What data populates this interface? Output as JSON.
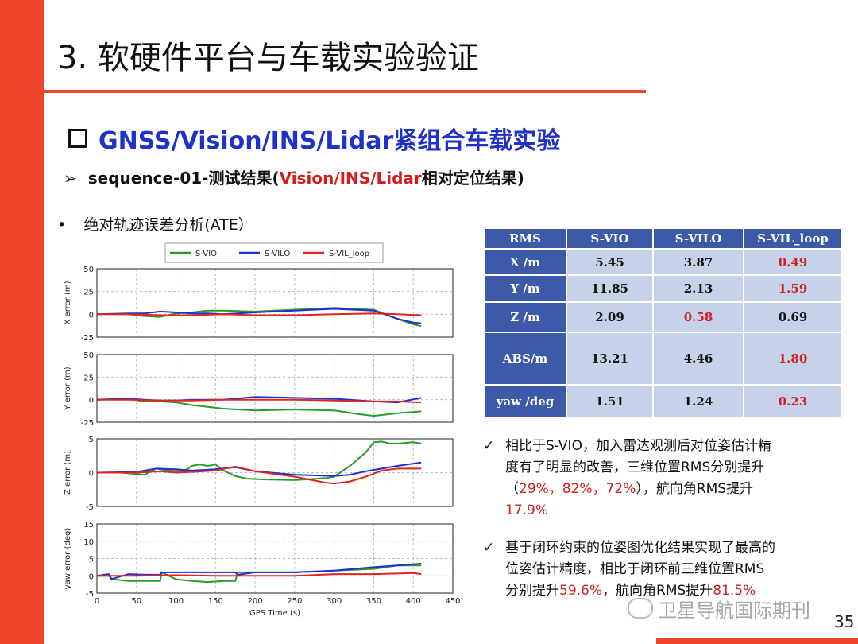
{
  "slide": {
    "title": "3. 软硬件平台与车载实验验证",
    "heading": "GNSS/Vision/INS/Lidar紧组合车载实验",
    "subheading_pre": "sequence-01-测试结果(",
    "subheading_red": "Vision/INS/Lidar",
    "subheading_post": "相对定位结果)",
    "bullet": "绝对轨迹误差分析(ATE）",
    "page_number": "35",
    "watermark": "卫星导航国际期刊",
    "accent_color": "#f0452a",
    "heading_color": "#1f31c8",
    "highlight_color": "#d21e1e"
  },
  "table": {
    "headers": [
      "RMS",
      "S-VIO",
      "S-VILO",
      "S-VIL_loop"
    ],
    "rows": [
      {
        "label": "X /m",
        "values": [
          "5.45",
          "3.87",
          "0.49"
        ],
        "red": [
          false,
          false,
          true
        ]
      },
      {
        "label": "Y /m",
        "values": [
          "11.85",
          "2.13",
          "1.59"
        ],
        "red": [
          false,
          false,
          true
        ]
      },
      {
        "label": "Z /m",
        "values": [
          "2.09",
          "0.58",
          "0.69"
        ],
        "red": [
          false,
          true,
          false
        ]
      },
      {
        "label": "ABS/m",
        "values": [
          "13.21",
          "4.46",
          "1.80"
        ],
        "red": [
          false,
          false,
          true
        ]
      },
      {
        "label": "yaw /deg",
        "values": [
          "1.51",
          "1.24",
          "0.23"
        ],
        "red": [
          false,
          false,
          true
        ]
      }
    ]
  },
  "notes": {
    "note1": {
      "t1": "相比于S-VIO，加入雷达观测后对位姿估计精",
      "t2": "度有了明显的改善，三维位置RMS分别提升",
      "t3": "（",
      "t3_red": "29%，82%，72%",
      "t3b": "），航向角RMS提升",
      "t4_red": "17.9%"
    },
    "note2": {
      "t1": "基于闭环约束的位姿图优化结果实现了最高的",
      "t2": "位姿估计精度，相比于闭环前三维位置RMS",
      "t3": "分别提升",
      "t3_red": "59.6%",
      "t3b": "，航向角RMS提升",
      "t3_red2": "81.5%"
    }
  },
  "chart_data": {
    "type": "line",
    "xlabel": "GPS Time (s)",
    "xlim": [
      0,
      450
    ],
    "xticks": [
      0,
      50,
      100,
      150,
      200,
      250,
      300,
      350,
      400,
      450
    ],
    "legend": [
      "S-VIO",
      "S-VILO",
      "S-VIL_loop"
    ],
    "colors": {
      "S-VIO": "#2a9a2a",
      "S-VILO": "#1f2fd8",
      "S-VIL_loop": "#e0251c"
    },
    "panels": [
      {
        "ylabel": "X error (m)",
        "ylim": [
          -25,
          50
        ],
        "yticks": [
          -25,
          0,
          25,
          50
        ],
        "series": [
          {
            "name": "S-VIO",
            "x": [
              0,
              40,
              60,
              80,
              100,
              120,
              140,
              160,
              200,
              250,
              300,
              350,
              380,
              400,
              410
            ],
            "y": [
              0,
              0,
              -2,
              -3,
              1,
              2,
              4,
              4,
              3,
              5,
              7,
              5,
              -5,
              -11,
              -13
            ]
          },
          {
            "name": "S-VILO",
            "x": [
              0,
              40,
              60,
              80,
              100,
              120,
              140,
              160,
              200,
              250,
              300,
              350,
              380,
              400,
              410
            ],
            "y": [
              0,
              1,
              1,
              3,
              2,
              1,
              1,
              0,
              2,
              4,
              6,
              4,
              -5,
              -9,
              -10
            ]
          },
          {
            "name": "S-VIL_loop",
            "x": [
              0,
              40,
              80,
              120,
              160,
              200,
              250,
              300,
              350,
              380,
              410
            ],
            "y": [
              0,
              0,
              -1,
              -1,
              0,
              -1,
              -1,
              0,
              1,
              0,
              -1
            ]
          }
        ]
      },
      {
        "ylabel": "Y error (m)",
        "ylim": [
          -25,
          50
        ],
        "yticks": [
          -25,
          0,
          25,
          50
        ],
        "series": [
          {
            "name": "S-VIO",
            "x": [
              0,
              40,
              60,
              80,
              100,
              120,
              140,
              160,
              200,
              250,
              300,
              330,
              350,
              380,
              410
            ],
            "y": [
              0,
              1,
              -2,
              -2,
              -3,
              -6,
              -8,
              -10,
              -12,
              -11,
              -12,
              -16,
              -18,
              -15,
              -13
            ]
          },
          {
            "name": "S-VILO",
            "x": [
              0,
              40,
              60,
              80,
              100,
              120,
              160,
              200,
              250,
              300,
              350,
              380,
              410
            ],
            "y": [
              0,
              1,
              0,
              -1,
              -1,
              0,
              0,
              3,
              2,
              1,
              -2,
              -3,
              2
            ]
          },
          {
            "name": "S-VIL_loop",
            "x": [
              0,
              40,
              80,
              120,
              160,
              200,
              250,
              300,
              350,
              380,
              410
            ],
            "y": [
              0,
              0,
              -1,
              -1,
              0,
              0,
              0,
              -1,
              -2,
              -2,
              -3
            ]
          }
        ]
      },
      {
        "ylabel": "Z error (m)",
        "ylim": [
          -5,
          5
        ],
        "yticks": [
          -5,
          0,
          5
        ],
        "series": [
          {
            "name": "S-VIO",
            "x": [
              0,
              30,
              50,
              60,
              75,
              90,
              110,
              120,
              130,
              140,
              150,
              160,
              175,
              190,
              210,
              250,
              290,
              300,
              320,
              340,
              350,
              360,
              370,
              380,
              400,
              410
            ],
            "y": [
              0,
              0,
              -0.2,
              -0.3,
              0.6,
              0.3,
              0.2,
              1.0,
              1.2,
              1.0,
              1.2,
              0.3,
              -0.5,
              -0.9,
              -1.0,
              -1.1,
              -0.8,
              -0.6,
              1.0,
              3.0,
              4.5,
              4.6,
              4.3,
              4.3,
              4.5,
              4.3
            ]
          },
          {
            "name": "S-VILO",
            "x": [
              0,
              50,
              75,
              100,
              120,
              150,
              175,
              200,
              250,
              300,
              320,
              340,
              360,
              380,
              410
            ],
            "y": [
              0,
              0.1,
              0.6,
              0.5,
              0.3,
              0.5,
              0.8,
              0.2,
              -0.3,
              -0.5,
              -0.3,
              0.2,
              0.6,
              1.0,
              1.5
            ]
          },
          {
            "name": "S-VIL_loop",
            "x": [
              0,
              50,
              80,
              100,
              120,
              150,
              175,
              200,
              250,
              290,
              300,
              320,
              340,
              360,
              380,
              410
            ],
            "y": [
              0,
              0,
              0.2,
              0,
              0.1,
              0.3,
              0.9,
              0.2,
              -0.6,
              -1.5,
              -1.6,
              -1.3,
              -0.6,
              0.3,
              0.6,
              0.6
            ]
          }
        ]
      },
      {
        "ylabel": "yaw error (deg)",
        "ylim": [
          -5,
          15
        ],
        "yticks": [
          -5,
          0,
          5,
          10,
          15
        ],
        "series": [
          {
            "name": "S-VIO",
            "x": [
              0,
              15,
              20,
              40,
              60,
              80,
              82,
              100,
              120,
              140,
              160,
              175,
              178,
              200,
              250,
              300,
              350,
              380,
              410
            ],
            "y": [
              0,
              0,
              -1,
              -1.5,
              -1.5,
              -1.5,
              1,
              -1,
              -1.5,
              -1.8,
              -1.5,
              -1.5,
              1,
              1,
              1,
              1.5,
              2,
              3,
              3
            ]
          },
          {
            "name": "S-VILO",
            "x": [
              0,
              15,
              18,
              40,
              60,
              80,
              82,
              100,
              150,
              175,
              178,
              200,
              250,
              300,
              350,
              380,
              410
            ],
            "y": [
              0,
              0.5,
              -1,
              0.5,
              0.3,
              0.3,
              1,
              1,
              1,
              1,
              0.3,
              1,
              1,
              1.5,
              2.5,
              3,
              3.5
            ]
          },
          {
            "name": "S-VIL_loop",
            "x": [
              0,
              50,
              100,
              150,
              200,
              250,
              300,
              350,
              400,
              410
            ],
            "y": [
              0,
              0,
              0.2,
              0,
              0,
              0,
              0.5,
              0.5,
              0.8,
              0.5
            ]
          }
        ]
      }
    ]
  }
}
